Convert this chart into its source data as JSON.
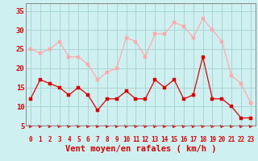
{
  "xlabel": "Vent moyen/en rafales ( km/h )",
  "background_color": "#cff0f0",
  "grid_color": "#aad4d4",
  "ylim": [
    5,
    37
  ],
  "yticks": [
    5,
    10,
    15,
    20,
    25,
    30,
    35
  ],
  "xlim": [
    -0.5,
    23.5
  ],
  "xticks": [
    0,
    1,
    2,
    3,
    4,
    5,
    6,
    7,
    8,
    9,
    10,
    11,
    12,
    13,
    14,
    15,
    16,
    17,
    18,
    19,
    20,
    21,
    22,
    23
  ],
  "mean_values": [
    12,
    17,
    16,
    15,
    13,
    15,
    13,
    9,
    12,
    12,
    14,
    12,
    12,
    17,
    15,
    17,
    12,
    13,
    23,
    12,
    12,
    10,
    7,
    7
  ],
  "gust_values": [
    25,
    24,
    25,
    27,
    23,
    23,
    21,
    17,
    19,
    20,
    28,
    27,
    23,
    29,
    29,
    32,
    31,
    28,
    33,
    30,
    27,
    18,
    16,
    11
  ],
  "mean_color": "#dd0000",
  "gust_color": "#ffaaaa",
  "marker_size": 2.5,
  "line_width": 0.9,
  "tick_label_color": "#dd0000",
  "xlabel_color": "#dd0000",
  "xlabel_fontsize": 7.5,
  "ytick_fontsize": 6.5,
  "xtick_fontsize": 5.5,
  "spine_color": "#888888"
}
